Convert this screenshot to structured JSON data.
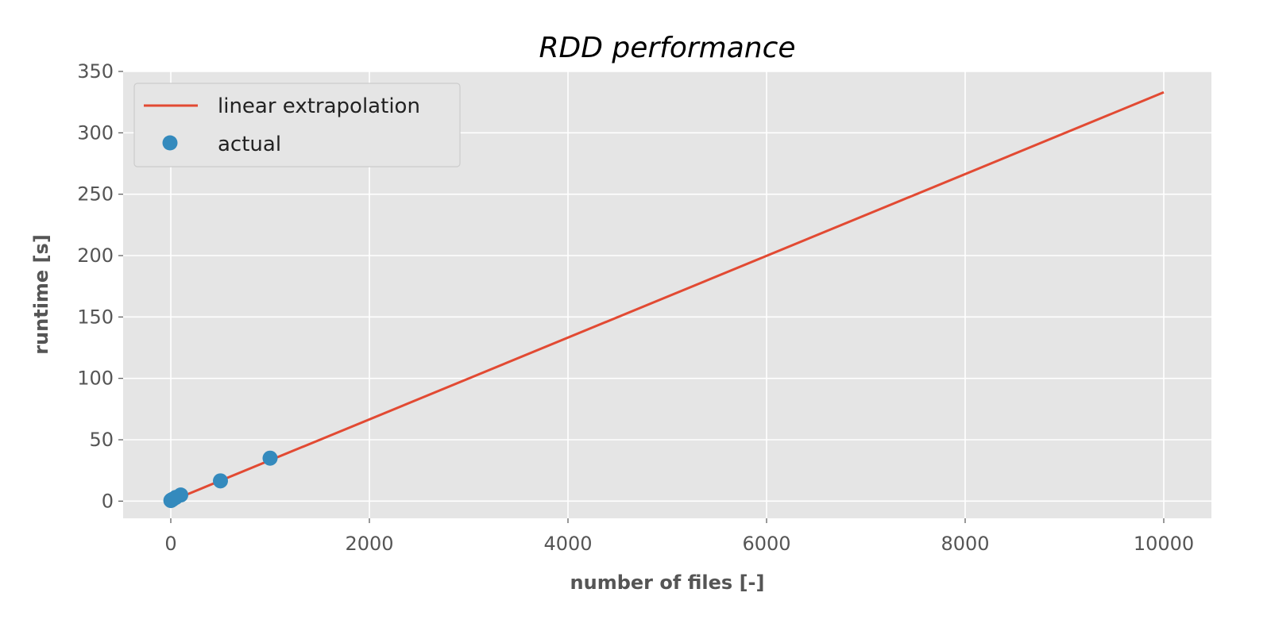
{
  "chart_data": {
    "type": "line",
    "title": "RDD performance",
    "xlabel": "number of files [-]",
    "ylabel": "runtime [s]",
    "xlim": [
      -480,
      10480
    ],
    "ylim": [
      -14,
      350
    ],
    "xticks": [
      0,
      2000,
      4000,
      6000,
      8000,
      10000
    ],
    "yticks": [
      0,
      50,
      100,
      150,
      200,
      250,
      300,
      350
    ],
    "grid": true,
    "legend_position": "top-left",
    "series": [
      {
        "name": "linear extrapolation",
        "kind": "line",
        "color": "#E24A33",
        "x": [
          0,
          10000
        ],
        "y": [
          0,
          333
        ]
      },
      {
        "name": "actual",
        "kind": "scatter",
        "color": "#348ABD",
        "x": [
          1,
          5,
          10,
          20,
          50,
          100,
          500,
          1000
        ],
        "y": [
          0.5,
          0.8,
          1.0,
          1.5,
          3.0,
          5.0,
          16.5,
          35
        ]
      }
    ]
  }
}
